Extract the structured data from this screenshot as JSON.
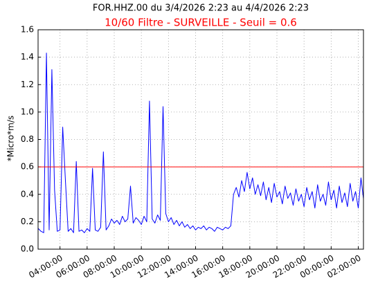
{
  "chart_data": {
    "type": "line",
    "title": "FOR.HHZ.00 du 3/4/2026 2:23 au 4/4/2026 2:23",
    "subtitle": "10/60 Filtre - SURVEILLE - Seuil = 0.6",
    "y_label": "*Micro*m/s",
    "threshold": 0.6,
    "threshold_color": "#ff0000",
    "grid": true,
    "xlim": [
      2.383,
      26.383
    ],
    "xticks": [
      {
        "value": 4,
        "label": "04:00:00"
      },
      {
        "value": 6,
        "label": "06:00:00"
      },
      {
        "value": 8,
        "label": "08:00:00"
      },
      {
        "value": 10,
        "label": "10:00:00"
      },
      {
        "value": 12,
        "label": "12:00:00"
      },
      {
        "value": 14,
        "label": "14:00:00"
      },
      {
        "value": 16,
        "label": "16:00:00"
      },
      {
        "value": 18,
        "label": "18:00:00"
      },
      {
        "value": 20,
        "label": "20:00:00"
      },
      {
        "value": 22,
        "label": "22:00:00"
      },
      {
        "value": 24,
        "label": "00:00:00"
      },
      {
        "value": 26,
        "label": "02:00:00"
      }
    ],
    "ylim": [
      0,
      1.6
    ],
    "yticks": [
      {
        "value": 0,
        "label": "0.0"
      },
      0.2,
      0.4,
      0.6,
      0.8,
      {
        "value": 1,
        "label": "1.0"
      },
      1.2,
      1.4,
      1.6
    ],
    "x": [
      2.4,
      2.6,
      2.8,
      3.0,
      3.2,
      3.4,
      3.6,
      3.8,
      4.0,
      4.2,
      4.4,
      4.6,
      4.8,
      5.0,
      5.2,
      5.4,
      5.6,
      5.8,
      6.0,
      6.2,
      6.4,
      6.6,
      6.8,
      7.0,
      7.2,
      7.4,
      7.6,
      7.8,
      8.0,
      8.2,
      8.4,
      8.6,
      8.8,
      9.0,
      9.2,
      9.4,
      9.6,
      9.8,
      10.0,
      10.2,
      10.4,
      10.6,
      10.8,
      11.0,
      11.2,
      11.4,
      11.6,
      11.8,
      12.0,
      12.2,
      12.4,
      12.6,
      12.8,
      13.0,
      13.2,
      13.4,
      13.6,
      13.8,
      14.0,
      14.2,
      14.4,
      14.6,
      14.8,
      15.0,
      15.2,
      15.4,
      15.6,
      15.8,
      16.0,
      16.2,
      16.4,
      16.6,
      16.8,
      17.0,
      17.2,
      17.4,
      17.6,
      17.8,
      18.0,
      18.2,
      18.4,
      18.6,
      18.8,
      19.0,
      19.2,
      19.4,
      19.6,
      19.8,
      20.0,
      20.2,
      20.4,
      20.6,
      20.8,
      21.0,
      21.2,
      21.4,
      21.6,
      21.8,
      22.0,
      22.2,
      22.4,
      22.6,
      22.8,
      23.0,
      23.2,
      23.4,
      23.6,
      23.8,
      24.0,
      24.2,
      24.4,
      24.6,
      24.8,
      25.0,
      25.2,
      25.4,
      25.6,
      25.8,
      26.0,
      26.2,
      26.38
    ],
    "series": [
      {
        "color": "#0000ff",
        "values": [
          0.15,
          0.13,
          0.12,
          1.43,
          0.14,
          1.31,
          0.43,
          0.13,
          0.14,
          0.89,
          0.5,
          0.13,
          0.15,
          0.12,
          0.64,
          0.13,
          0.14,
          0.12,
          0.15,
          0.13,
          0.59,
          0.14,
          0.13,
          0.16,
          0.71,
          0.14,
          0.17,
          0.22,
          0.19,
          0.21,
          0.18,
          0.24,
          0.2,
          0.22,
          0.46,
          0.19,
          0.23,
          0.21,
          0.18,
          0.24,
          0.2,
          1.08,
          0.22,
          0.19,
          0.25,
          0.21,
          1.04,
          0.26,
          0.2,
          0.23,
          0.18,
          0.21,
          0.17,
          0.2,
          0.16,
          0.18,
          0.15,
          0.17,
          0.14,
          0.16,
          0.15,
          0.17,
          0.14,
          0.16,
          0.15,
          0.13,
          0.16,
          0.15,
          0.14,
          0.16,
          0.15,
          0.17,
          0.4,
          0.45,
          0.38,
          0.5,
          0.42,
          0.56,
          0.44,
          0.52,
          0.4,
          0.47,
          0.39,
          0.49,
          0.36,
          0.45,
          0.34,
          0.48,
          0.38,
          0.42,
          0.33,
          0.46,
          0.37,
          0.41,
          0.32,
          0.44,
          0.35,
          0.4,
          0.31,
          0.45,
          0.36,
          0.42,
          0.3,
          0.47,
          0.35,
          0.4,
          0.32,
          0.49,
          0.36,
          0.43,
          0.3,
          0.46,
          0.34,
          0.41,
          0.31,
          0.48,
          0.35,
          0.42,
          0.3,
          0.52,
          0.37
        ]
      }
    ]
  }
}
